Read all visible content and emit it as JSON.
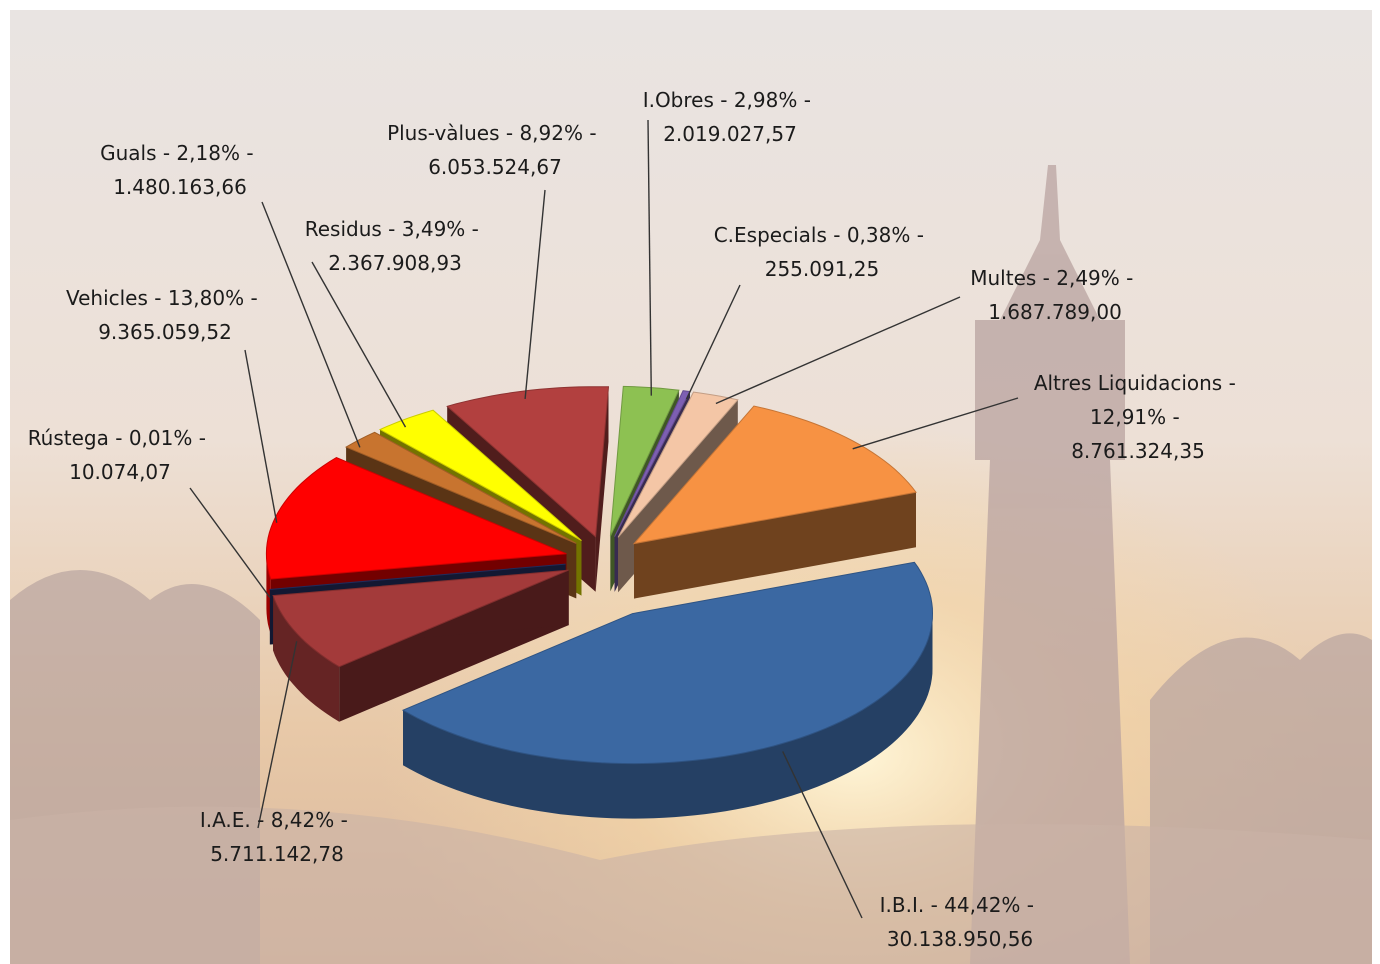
{
  "chart_data": {
    "type": "pie3d",
    "separator": " - ",
    "categories": [
      "I.B.I.",
      "I.A.E.",
      "Rústega",
      "Vehicles",
      "Guals",
      "Residus",
      "Plus-vàlues",
      "I.Obres",
      "C.Especials",
      "Multes",
      "Altres Liquidacions"
    ],
    "values": [
      44.42,
      8.42,
      0.01,
      13.8,
      2.18,
      3.49,
      8.92,
      2.98,
      0.38,
      2.49,
      12.91
    ],
    "value_labels": [
      "44,42%",
      "8,42%",
      "0,01%",
      "13,80%",
      "2,18%",
      "3,49%",
      "8,92%",
      "2,98%",
      "0,38%",
      "2,49%",
      "12,91%"
    ],
    "amounts": [
      30138950.56,
      5711142.78,
      10074.07,
      9365059.52,
      1480163.66,
      2367908.93,
      6053524.67,
      2019027.57,
      255091.25,
      1687789.0,
      8761324.35
    ],
    "amount_labels": [
      "30.138.950,56",
      "5.711.142,78",
      "10.074,07",
      "9.365.059,52",
      "1.480.163,66",
      "2.367.908,93",
      "6.053.524,67",
      "2.019.027,57",
      "255.091,25",
      "1.687.789,00",
      "8.761.324,35"
    ],
    "colors": [
      "#3b68a2",
      "#a33a3a",
      "#2a3570",
      "#ff0000",
      "#c8742f",
      "#ffff00",
      "#b2403f",
      "#8dc152",
      "#7d5fb2",
      "#f4c6a6",
      "#f79243"
    ]
  }
}
